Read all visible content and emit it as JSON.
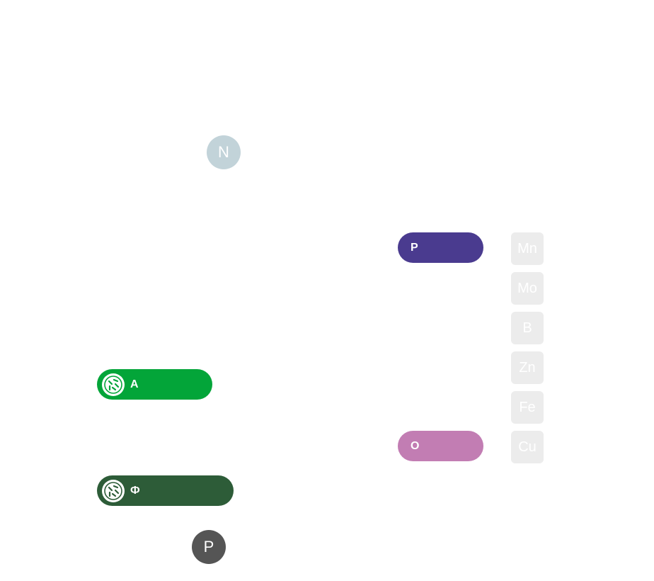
{
  "nodes": {
    "n": {
      "label": "N",
      "color": "#c2d3d9"
    },
    "p": {
      "label": "P",
      "color": "#555555"
    }
  },
  "pills": {
    "a": {
      "label": "A",
      "color": "#03a539",
      "icon": "bacteria-icon"
    },
    "ph": {
      "label": "Ф",
      "color": "#2d5c38",
      "icon": "bacteria-icon"
    },
    "r": {
      "label": "P",
      "color": "#4a3b8f"
    },
    "o": {
      "label": "O",
      "color": "#c27db3"
    }
  },
  "micronutrients": {
    "color": "#ececec",
    "items": [
      "Mn",
      "Mo",
      "B",
      "Zn",
      "Fe",
      "Cu"
    ]
  }
}
